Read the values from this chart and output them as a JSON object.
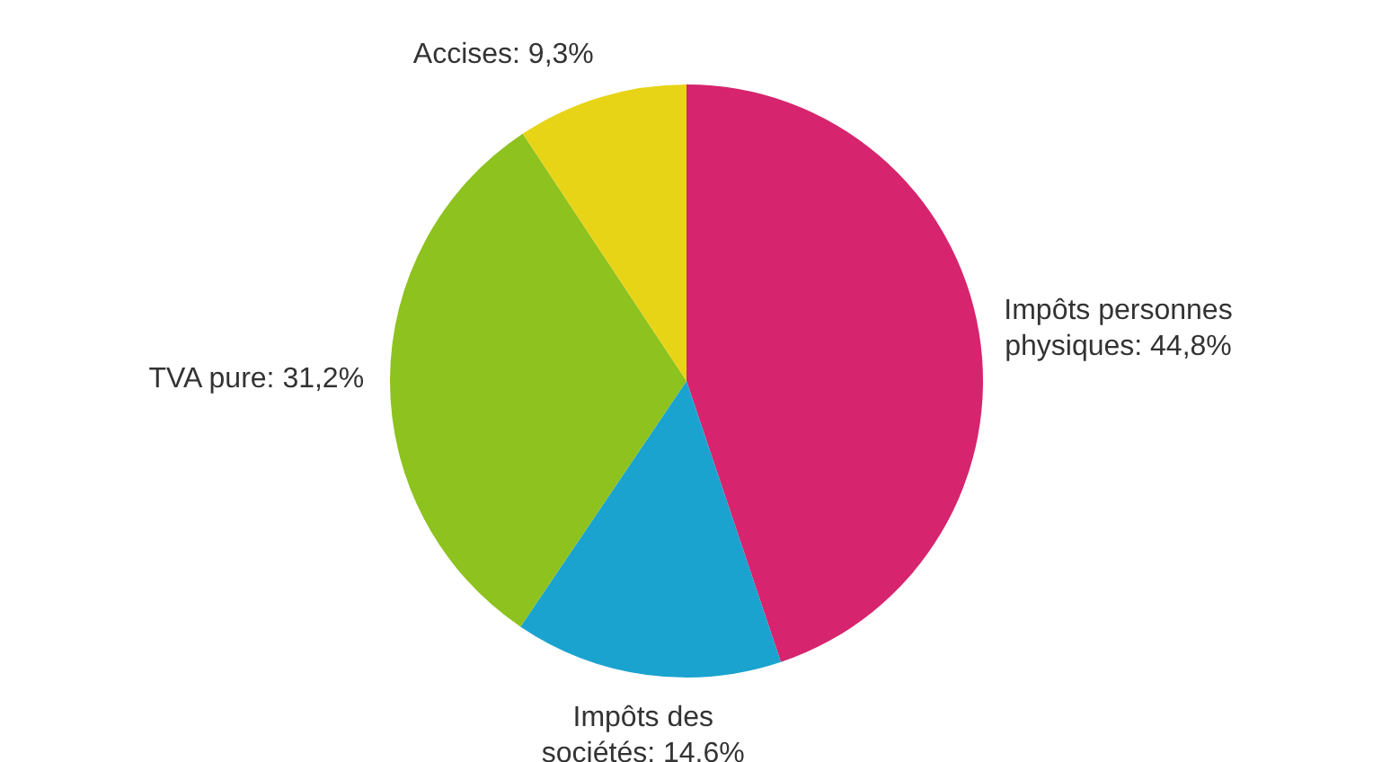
{
  "chart_data": {
    "type": "pie",
    "categories": [
      "Impôts personnes physiques",
      "Impôts des sociétés",
      "TVA pure",
      "Accises"
    ],
    "values": [
      44.8,
      14.6,
      31.2,
      9.3
    ],
    "value_labels": [
      "44,8%",
      "14.6%",
      "31,2%",
      "9,3%"
    ],
    "colors": [
      "#d6246e",
      "#1aa3cf",
      "#8dc21f",
      "#e8d417"
    ],
    "legend": false
  }
}
